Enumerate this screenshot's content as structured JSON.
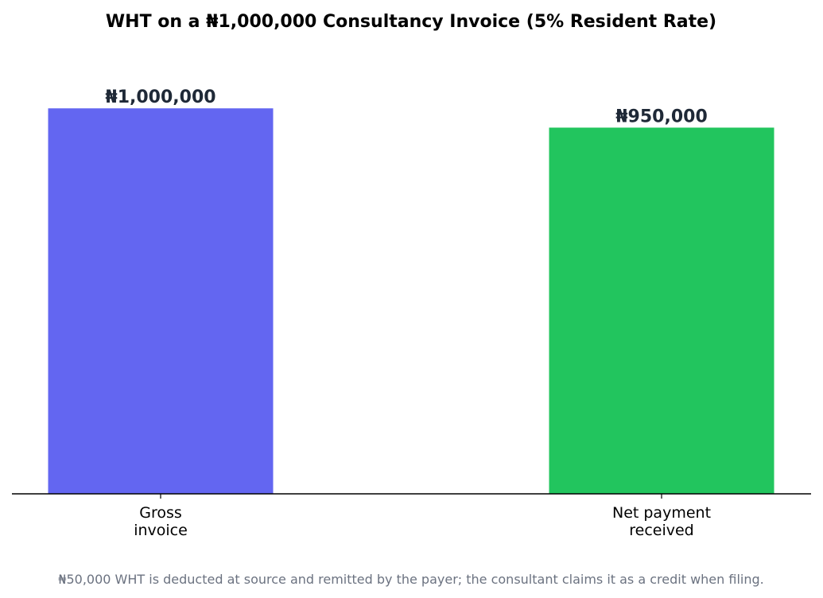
{
  "chart_data": {
    "type": "bar",
    "title": "WHT on a ₦1,000,000 Consultancy Invoice (5% Resident Rate)",
    "xlabel": "",
    "ylabel": "",
    "categories": [
      [
        "Gross",
        "invoice"
      ],
      [
        "Net payment",
        "received"
      ]
    ],
    "values": [
      1000000,
      950000
    ],
    "value_labels": [
      "₦1,000,000",
      "₦950,000"
    ],
    "colors": [
      "#6366f1",
      "#22c55e"
    ],
    "ylim": [
      0,
      1050000
    ],
    "grid": false,
    "legend": "none",
    "footnote": "₦50,000 WHT is deducted at source and remitted by the payer; the consultant claims it as a credit when filing."
  }
}
